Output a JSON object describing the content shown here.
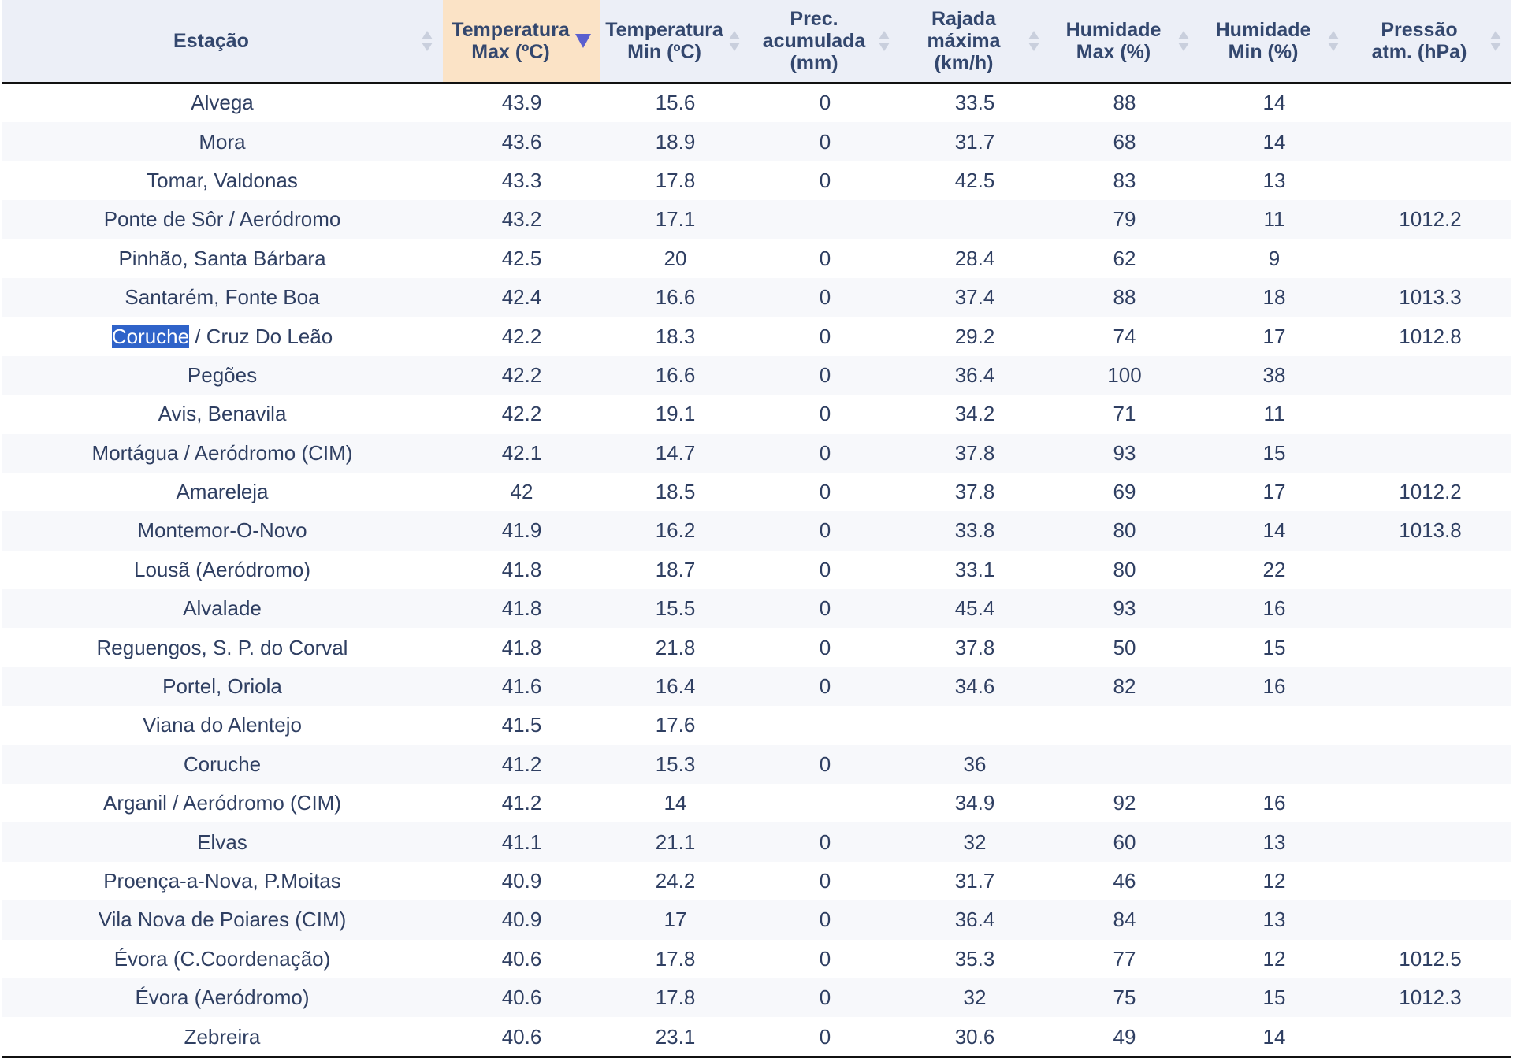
{
  "columns": [
    "Estação",
    "Temperatura Max (ºC)",
    "Temperatura Min (ºC)",
    "Prec. acumulada (mm)",
    "Rajada máxima (km/h)",
    "Humidade Max (%)",
    "Humidade Min (%)",
    "Pressão atm. (hPa)"
  ],
  "sort": {
    "column": "Temperatura Max (ºC)",
    "direction": "descending"
  },
  "selection": {
    "row": 6,
    "text": "Coruche"
  },
  "colors": {
    "header_bg": "#eceff7",
    "active_header_bg": "#fbe3c6",
    "sort_arrow": "#5a5fcf",
    "selection": "#2f63c9"
  },
  "rows": [
    [
      "Alvega",
      "43.9",
      "15.6",
      "0",
      "33.5",
      "88",
      "14",
      ""
    ],
    [
      "Mora",
      "43.6",
      "18.9",
      "0",
      "31.7",
      "68",
      "14",
      ""
    ],
    [
      "Tomar, Valdonas",
      "43.3",
      "17.8",
      "0",
      "42.5",
      "83",
      "13",
      ""
    ],
    [
      "Ponte de Sôr / Aeródromo",
      "43.2",
      "17.1",
      "",
      "",
      "79",
      "11",
      "1012.2"
    ],
    [
      "Pinhão, Santa Bárbara",
      "42.5",
      "20",
      "0",
      "28.4",
      "62",
      "9",
      ""
    ],
    [
      "Santarém, Fonte Boa",
      "42.4",
      "16.6",
      "0",
      "37.4",
      "88",
      "18",
      "1013.3"
    ],
    [
      "Coruche / Cruz Do Leão",
      "42.2",
      "18.3",
      "0",
      "29.2",
      "74",
      "17",
      "1012.8"
    ],
    [
      "Pegões",
      "42.2",
      "16.6",
      "0",
      "36.4",
      "100",
      "38",
      ""
    ],
    [
      "Avis, Benavila",
      "42.2",
      "19.1",
      "0",
      "34.2",
      "71",
      "11",
      ""
    ],
    [
      "Mortágua / Aeródromo (CIM)",
      "42.1",
      "14.7",
      "0",
      "37.8",
      "93",
      "15",
      ""
    ],
    [
      "Amareleja",
      "42",
      "18.5",
      "0",
      "37.8",
      "69",
      "17",
      "1012.2"
    ],
    [
      "Montemor-O-Novo",
      "41.9",
      "16.2",
      "0",
      "33.8",
      "80",
      "14",
      "1013.8"
    ],
    [
      "Lousã (Aeródromo)",
      "41.8",
      "18.7",
      "0",
      "33.1",
      "80",
      "22",
      ""
    ],
    [
      "Alvalade",
      "41.8",
      "15.5",
      "0",
      "45.4",
      "93",
      "16",
      ""
    ],
    [
      "Reguengos, S. P. do Corval",
      "41.8",
      "21.8",
      "0",
      "37.8",
      "50",
      "15",
      ""
    ],
    [
      "Portel, Oriola",
      "41.6",
      "16.4",
      "0",
      "34.6",
      "82",
      "16",
      ""
    ],
    [
      "Viana do Alentejo",
      "41.5",
      "17.6",
      "",
      "",
      "",
      "",
      ""
    ],
    [
      "Coruche",
      "41.2",
      "15.3",
      "0",
      "36",
      "",
      "",
      ""
    ],
    [
      "Arganil / Aeródromo (CIM)",
      "41.2",
      "14",
      "",
      "34.9",
      "92",
      "16",
      ""
    ],
    [
      "Elvas",
      "41.1",
      "21.1",
      "0",
      "32",
      "60",
      "13",
      ""
    ],
    [
      "Proença-a-Nova, P.Moitas",
      "40.9",
      "24.2",
      "0",
      "31.7",
      "46",
      "12",
      ""
    ],
    [
      "Vila Nova de Poiares (CIM)",
      "40.9",
      "17",
      "0",
      "36.4",
      "84",
      "13",
      ""
    ],
    [
      "Évora (C.Coordenação)",
      "40.6",
      "17.8",
      "0",
      "35.3",
      "77",
      "12",
      "1012.5"
    ],
    [
      "Évora (Aeródromo)",
      "40.6",
      "17.8",
      "0",
      "32",
      "75",
      "15",
      "1012.3"
    ],
    [
      "Zebreira",
      "40.6",
      "23.1",
      "0",
      "30.6",
      "49",
      "14",
      ""
    ]
  ]
}
